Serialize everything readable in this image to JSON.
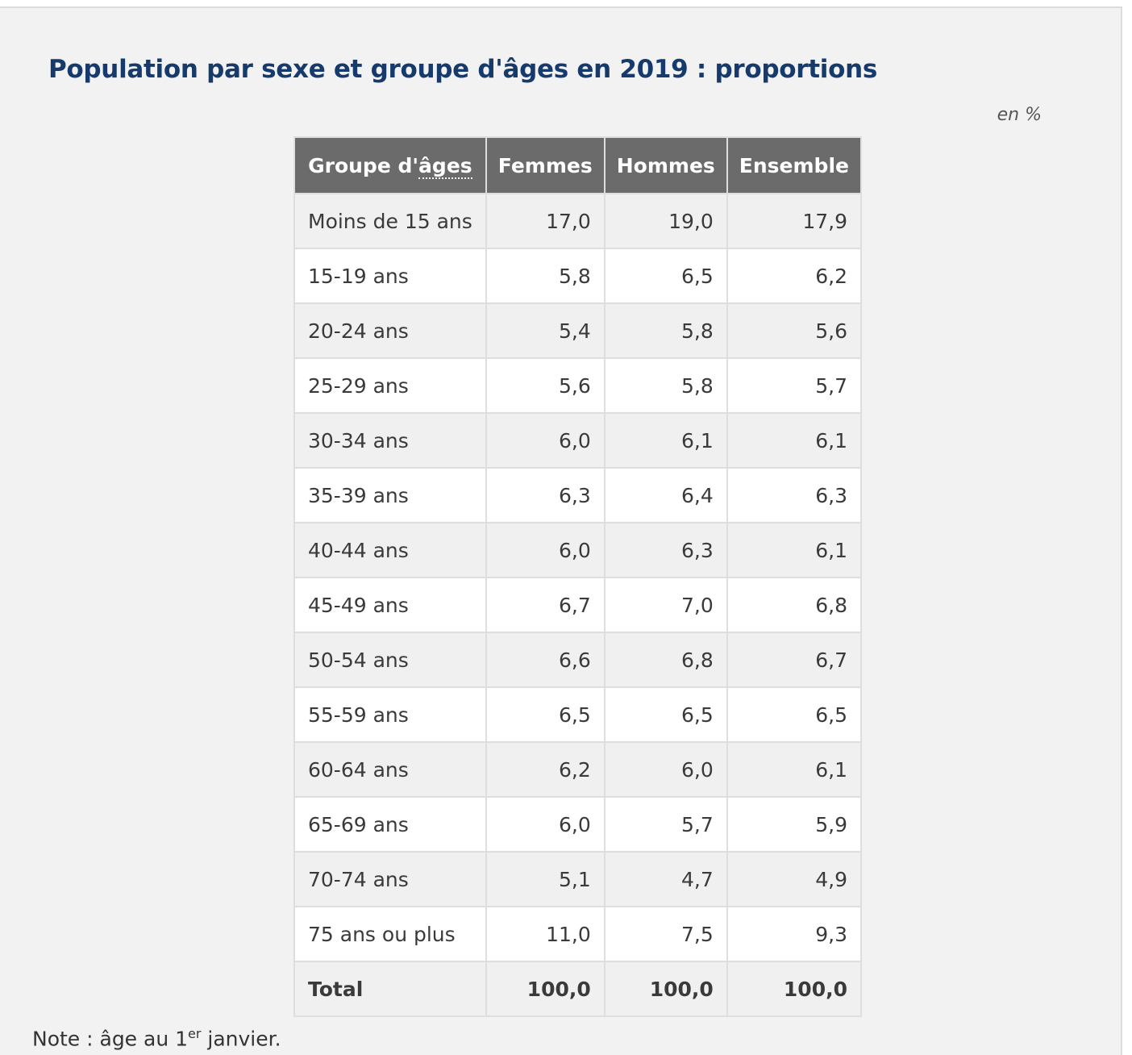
{
  "title": "Population par sexe et groupe d'âges en 2019 : proportions",
  "unit": "en %",
  "table": {
    "headers": {
      "group_prefix": "Groupe d'",
      "group_abbr": "âges",
      "femmes": "Femmes",
      "hommes": "Hommes",
      "ensemble": "Ensemble"
    },
    "rows": [
      {
        "label": "Moins de 15 ans",
        "femmes": "17,0",
        "hommes": "19,0",
        "ensemble": "17,9"
      },
      {
        "label": "15-19 ans",
        "femmes": "5,8",
        "hommes": "6,5",
        "ensemble": "6,2"
      },
      {
        "label": "20-24 ans",
        "femmes": "5,4",
        "hommes": "5,8",
        "ensemble": "5,6"
      },
      {
        "label": "25-29 ans",
        "femmes": "5,6",
        "hommes": "5,8",
        "ensemble": "5,7"
      },
      {
        "label": "30-34 ans",
        "femmes": "6,0",
        "hommes": "6,1",
        "ensemble": "6,1"
      },
      {
        "label": "35-39 ans",
        "femmes": "6,3",
        "hommes": "6,4",
        "ensemble": "6,3"
      },
      {
        "label": "40-44 ans",
        "femmes": "6,0",
        "hommes": "6,3",
        "ensemble": "6,1"
      },
      {
        "label": "45-49 ans",
        "femmes": "6,7",
        "hommes": "7,0",
        "ensemble": "6,8"
      },
      {
        "label": "50-54 ans",
        "femmes": "6,6",
        "hommes": "6,8",
        "ensemble": "6,7"
      },
      {
        "label": "55-59 ans",
        "femmes": "6,5",
        "hommes": "6,5",
        "ensemble": "6,5"
      },
      {
        "label": "60-64 ans",
        "femmes": "6,2",
        "hommes": "6,0",
        "ensemble": "6,1"
      },
      {
        "label": "65-69 ans",
        "femmes": "6,0",
        "hommes": "5,7",
        "ensemble": "5,9"
      },
      {
        "label": "70-74 ans",
        "femmes": "5,1",
        "hommes": "4,7",
        "ensemble": "4,9"
      },
      {
        "label": "75 ans ou plus",
        "femmes": "11,0",
        "hommes": "7,5",
        "ensemble": "9,3"
      }
    ],
    "total": {
      "label": "Total",
      "femmes": "100,0",
      "hommes": "100,0",
      "ensemble": "100,0"
    }
  },
  "note": {
    "prefix": "Note : âge au 1",
    "sup": "er",
    "suffix": " janvier."
  }
}
